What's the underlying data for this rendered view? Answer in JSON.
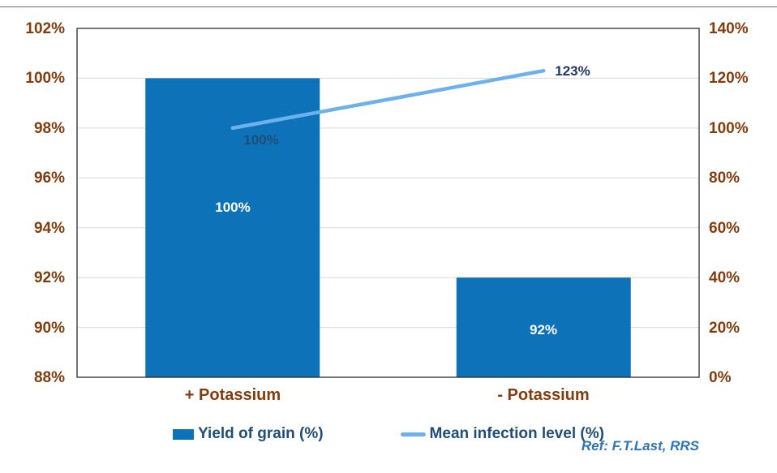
{
  "chart_data": {
    "type": "bar",
    "subtype": "bar-line combo with dual percentage axes",
    "title": "",
    "categories": [
      "+ Potassium",
      "- Potassium"
    ],
    "series": [
      {
        "name": "Yield of grain (%)",
        "kind": "bar",
        "axis": "left",
        "values": [
          100,
          92
        ],
        "value_labels": [
          "100%",
          "92%"
        ],
        "color": "#0e72b8"
      },
      {
        "name": "Mean infection level (%)",
        "kind": "line",
        "axis": "right",
        "values": [
          100,
          123
        ],
        "value_labels": [
          "100%",
          "123%"
        ],
        "color": "#6cb0ec"
      }
    ],
    "left_axis": {
      "min": 88,
      "max": 102,
      "step": 2,
      "ticks": [
        "102%",
        "100%",
        "98%",
        "96%",
        "94%",
        "92%",
        "90%",
        "88%"
      ]
    },
    "right_axis": {
      "min": 0,
      "max": 140,
      "step": 20,
      "ticks": [
        "140%",
        "120%",
        "100%",
        "80%",
        "60%",
        "40%",
        "20%",
        "0%"
      ]
    },
    "grid": true,
    "legend_position": "bottom"
  },
  "footer": {
    "ref": "Ref: F.T.Last, RRS"
  },
  "colors": {
    "bar": "#0e72b8",
    "line": "#6cb0ec",
    "axis_label": "#843c0c",
    "legend_text": "#1f4e79",
    "bar_label": "#ffffff",
    "line_label_first": "#1f4e79",
    "line_label_second": "#1f3864",
    "ref_text": "#2e75b6",
    "gridline": "#d9d9d9",
    "axis_line": "#2b2b2b"
  }
}
